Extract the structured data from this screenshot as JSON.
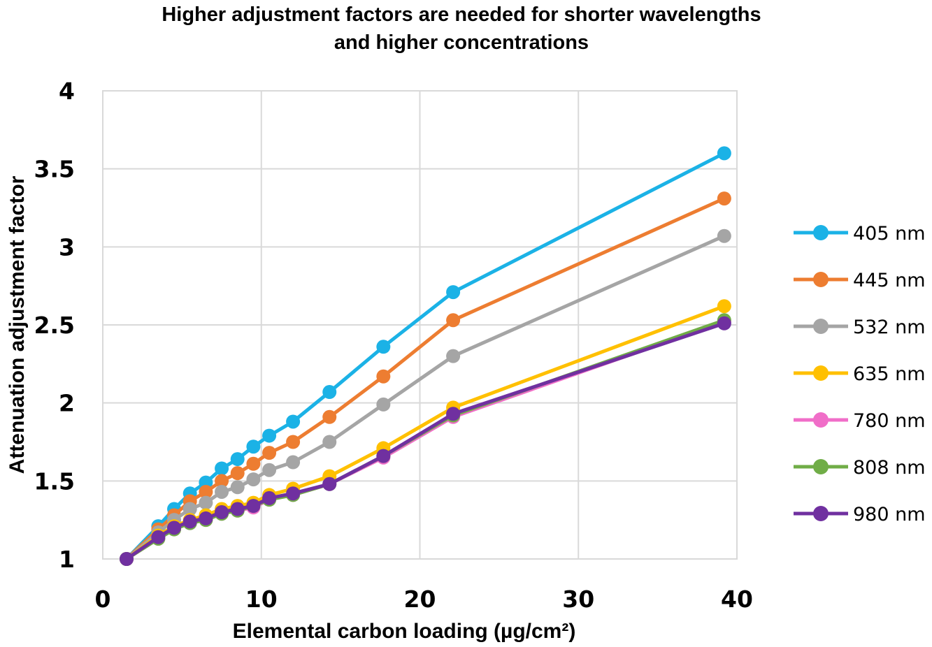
{
  "chart_data": {
    "type": "line",
    "title": "Higher adjustment factors are needed for shorter wavelengths",
    "subtitle": "and higher concentrations",
    "xlabel": "Elemental carbon loading (µg/cm²)",
    "ylabel": "Attenuation adjustment factor",
    "xlim": [
      0,
      40
    ],
    "ylim": [
      1,
      4
    ],
    "x_ticks": [
      0,
      10,
      20,
      30,
      40
    ],
    "y_ticks": [
      1,
      1.5,
      2,
      2.5,
      3,
      3.5,
      4
    ],
    "x_tick_labels": [
      "0",
      "10",
      "20",
      "30",
      "40"
    ],
    "y_tick_labels": [
      "1",
      "1.5",
      "2",
      "2.5",
      "3",
      "3.5",
      "4"
    ],
    "grid": true,
    "legend_position": "right",
    "x": [
      1.5,
      3.5,
      4.5,
      5.5,
      6.5,
      7.5,
      8.5,
      9.5,
      10.5,
      12.0,
      14.3,
      17.7,
      22.1,
      39.2
    ],
    "series": [
      {
        "name": "405 nm",
        "color": "#1BB2E6",
        "values": [
          1.0,
          1.21,
          1.32,
          1.42,
          1.49,
          1.58,
          1.64,
          1.72,
          1.79,
          1.88,
          2.07,
          2.36,
          2.71,
          3.6
        ]
      },
      {
        "name": "445 nm",
        "color": "#ED7D31",
        "values": [
          1.0,
          1.19,
          1.28,
          1.37,
          1.43,
          1.5,
          1.55,
          1.61,
          1.68,
          1.75,
          1.91,
          2.17,
          2.53,
          3.31
        ]
      },
      {
        "name": "532 nm",
        "color": "#A5A5A5",
        "values": [
          1.0,
          1.17,
          1.25,
          1.32,
          1.36,
          1.43,
          1.46,
          1.51,
          1.57,
          1.62,
          1.75,
          1.99,
          2.3,
          3.07
        ]
      },
      {
        "name": "635 nm",
        "color": "#FFC000",
        "values": [
          1.0,
          1.15,
          1.21,
          1.25,
          1.28,
          1.32,
          1.34,
          1.36,
          1.41,
          1.45,
          1.53,
          1.71,
          1.97,
          2.62
        ]
      },
      {
        "name": "780 nm",
        "color": "#F06EC8",
        "values": [
          1.0,
          1.13,
          1.19,
          1.23,
          1.25,
          1.29,
          1.31,
          1.33,
          1.38,
          1.41,
          1.48,
          1.65,
          1.91,
          2.52
        ]
      },
      {
        "name": "808 nm",
        "color": "#70AD47",
        "values": [
          1.0,
          1.13,
          1.19,
          1.23,
          1.25,
          1.29,
          1.31,
          1.34,
          1.38,
          1.41,
          1.48,
          1.66,
          1.92,
          2.53
        ]
      },
      {
        "name": "980 nm",
        "color": "#7030A0",
        "values": [
          1.0,
          1.14,
          1.2,
          1.24,
          1.26,
          1.3,
          1.32,
          1.34,
          1.39,
          1.42,
          1.48,
          1.66,
          1.93,
          2.51
        ]
      }
    ]
  }
}
